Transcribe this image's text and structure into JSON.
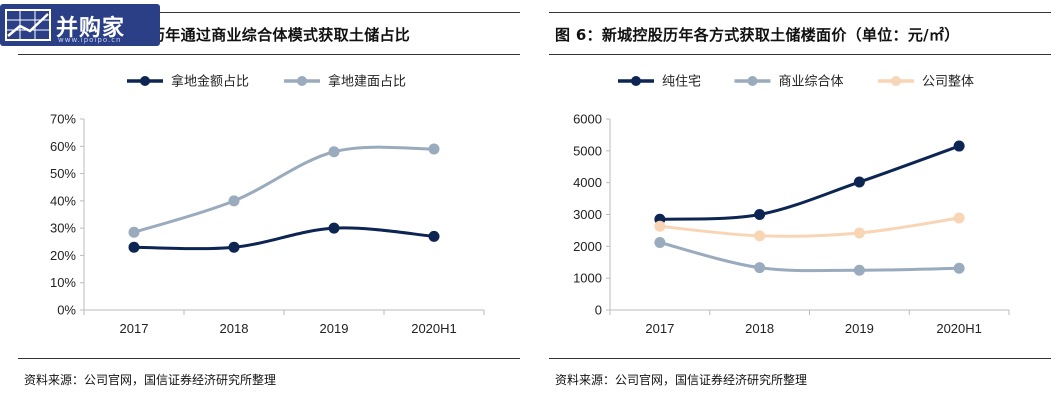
{
  "watermark": {
    "text": "并购家",
    "sub": "www.ipoipo.cn"
  },
  "left_panel": {
    "title": "历年通过商业综合体模式获取土储占比",
    "source": "资料来源：公司官网，国信证券经济研究所整理"
  },
  "right_panel": {
    "title": "图 6：新城控股历年各方式获取土储楼面价（单位：元/㎡）",
    "source": "资料来源：公司官网，国信证券经济研究所整理"
  },
  "chart_data": [
    {
      "type": "line",
      "categories": [
        "2017",
        "2018",
        "2019",
        "2020H1"
      ],
      "series": [
        {
          "name": "拿地金额占比",
          "values": [
            23,
            23,
            30,
            27
          ],
          "color": "#0d2552"
        },
        {
          "name": "拿地建面占比",
          "values": [
            28.5,
            40,
            58,
            59
          ],
          "color": "#9aabbd"
        }
      ],
      "ylim": [
        0,
        70
      ],
      "yticks": [
        "0%",
        "10%",
        "20%",
        "30%",
        "40%",
        "50%",
        "60%",
        "70%"
      ],
      "legend": "top",
      "grid": false,
      "smooth": true
    },
    {
      "type": "line",
      "categories": [
        "2017",
        "2018",
        "2019",
        "2020H1"
      ],
      "series": [
        {
          "name": "纯住宅",
          "values": [
            2850,
            3000,
            4020,
            5150
          ],
          "color": "#0d2552"
        },
        {
          "name": "商业综合体",
          "values": [
            2120,
            1330,
            1250,
            1310
          ],
          "color": "#9aabbd"
        },
        {
          "name": "公司整体",
          "values": [
            2630,
            2330,
            2420,
            2890
          ],
          "color": "#f8d5b5"
        }
      ],
      "ylim": [
        0,
        6000
      ],
      "yticks": [
        "0",
        "1000",
        "2000",
        "3000",
        "4000",
        "5000",
        "6000"
      ],
      "legend": "top",
      "grid": false,
      "smooth": true
    }
  ]
}
